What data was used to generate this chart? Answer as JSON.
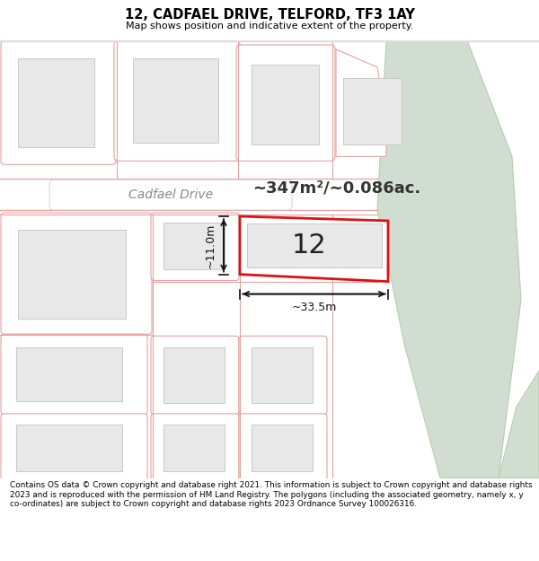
{
  "title": "12, CADFAEL DRIVE, TELFORD, TF3 1AY",
  "subtitle": "Map shows position and indicative extent of the property.",
  "footer": "Contains OS data © Crown copyright and database right 2021. This information is subject to Crown copyright and database rights 2023 and is reproduced with the permission of HM Land Registry. The polygons (including the associated geometry, namely x, y co-ordinates) are subject to Crown copyright and database rights 2023 Ordnance Survey 100026316.",
  "map_bg": "#ffffff",
  "road_outline": "#e8a0a0",
  "plot_outline": "#e8a0a0",
  "building_fill": "#e8e8e8",
  "building_outline": "#c8c8c8",
  "highlight_fill": "#e8e8e8",
  "highlight_outline": "#dd1111",
  "green_fill": "#d0ddd0",
  "green_outline": "#b8ccb0",
  "street_label": "Cadfael Drive",
  "area_label": "~347m²/~0.086ac.",
  "number_label": "12",
  "dim_width": "~33.5m",
  "dim_height": "~11.0m",
  "footer_bg": "#ffffff",
  "header_bg": "#ffffff",
  "road_pill_fill": "#ffffff",
  "road_pill_outline": "#c8c8c8",
  "dim_color": "#111111",
  "label_color": "#333333"
}
